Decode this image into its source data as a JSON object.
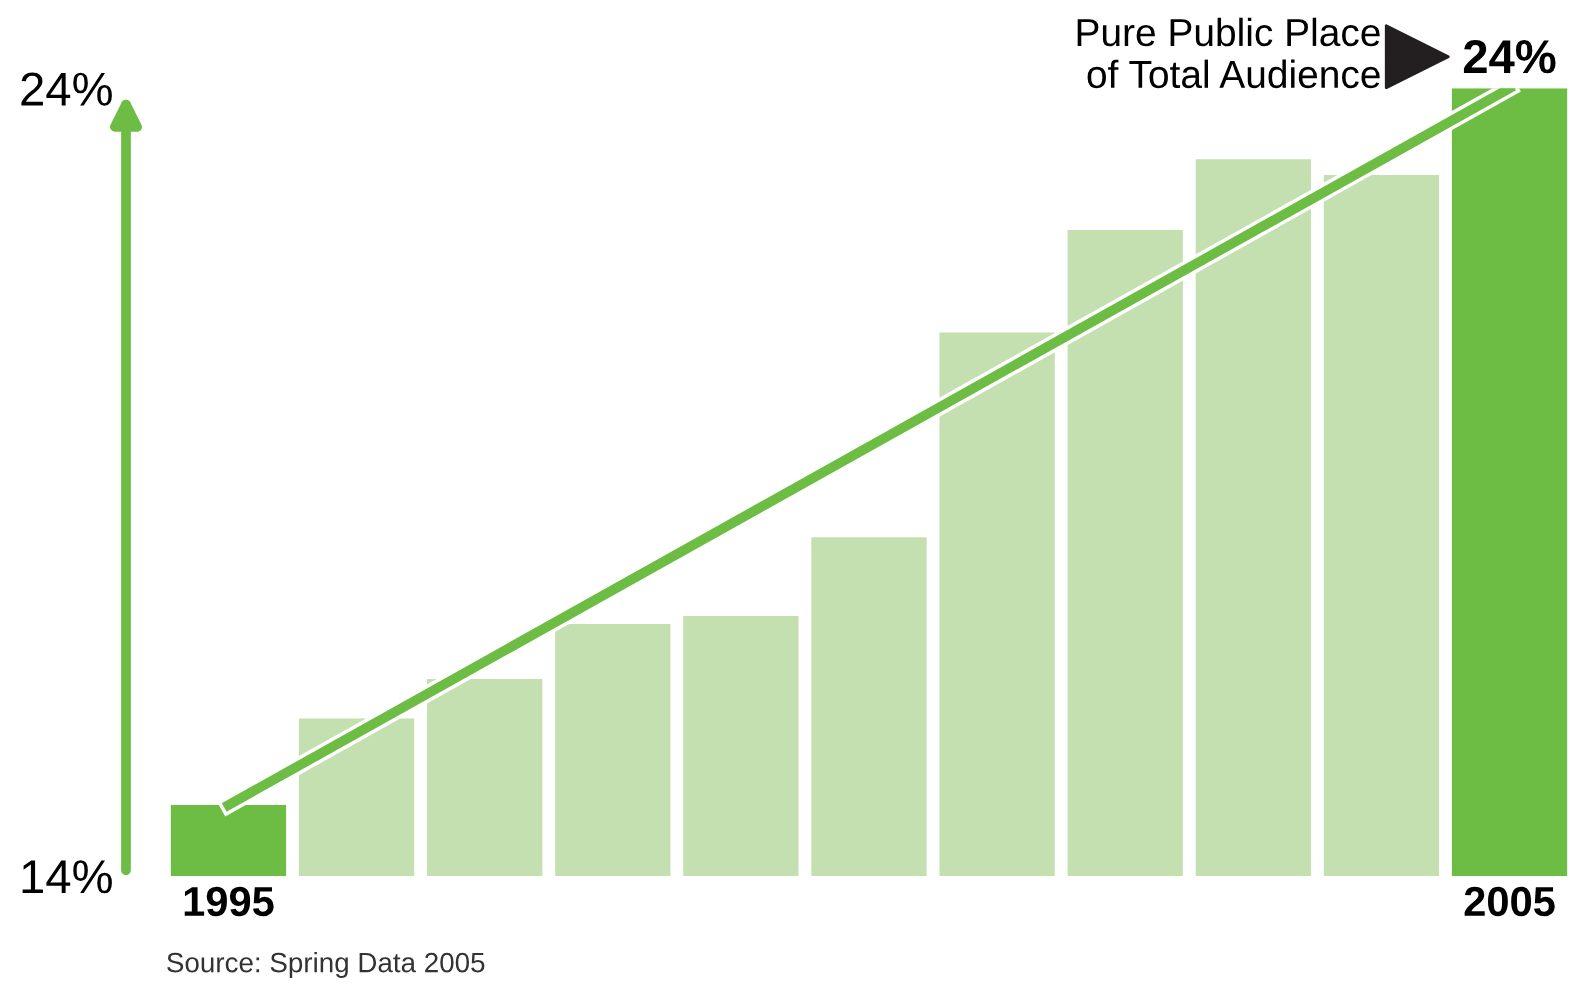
{
  "chart_data": {
    "type": "bar",
    "categories": [
      "1995",
      null,
      null,
      null,
      null,
      null,
      null,
      null,
      null,
      null,
      "2005"
    ],
    "series": [
      {
        "colors": [
          "#6dbd45",
          "#c5e0b0",
          "#c5e0b0",
          "#c5e0b0",
          "#c5e0b0",
          "#c5e0b0",
          "#c5e0b0",
          "#c5e0b0",
          "#c5e0b0",
          "#c5e0b0",
          "#6dbd45"
        ],
        "values": [
          14.9,
          16.0,
          16.5,
          17.2,
          17.3,
          18.3,
          20.9,
          22.2,
          23.1,
          22.9,
          24.0
        ],
        "value_labels": [
          null,
          null,
          null,
          null,
          null,
          null,
          null,
          null,
          null,
          null,
          "24%"
        ]
      },
      {
        "type": "line",
        "color": "#6dbd45",
        "values": [
          14.9,
          null,
          null,
          null,
          null,
          null,
          null,
          null,
          null,
          null,
          24.0
        ]
      }
    ],
    "ylim": [
      14,
      24
    ],
    "yticks": [
      {
        "value": 14,
        "label": "14%"
      },
      {
        "value": 24,
        "label": "24%"
      }
    ],
    "annotations": [
      "Pure Public Place\nof Total Audience",
      "Source: Spring Data 2005"
    ],
    "grid": false,
    "legend": false
  }
}
